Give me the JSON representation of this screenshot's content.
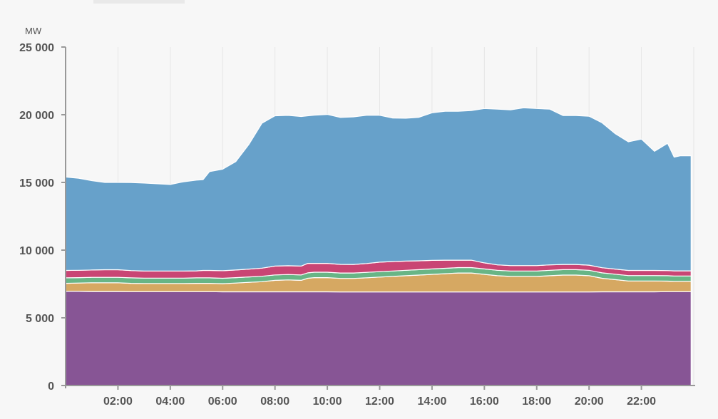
{
  "tab": {
    "label": ""
  },
  "chart_data": {
    "type": "area",
    "stacked": true,
    "ylabel": "MW",
    "ylim": [
      0,
      25000
    ],
    "xlim": [
      0,
      24
    ],
    "y_ticks": [
      0,
      5000,
      10000,
      15000,
      20000,
      25000
    ],
    "y_tick_labels": [
      "0",
      "5 000",
      "10 000",
      "15 000",
      "20 000",
      "25 000"
    ],
    "x_ticks": [
      2,
      4,
      6,
      8,
      10,
      12,
      14,
      16,
      18,
      20,
      22
    ],
    "x_tick_labels": [
      "02:00",
      "04:00",
      "06:00",
      "08:00",
      "10:00",
      "12:00",
      "14:00",
      "16:00",
      "18:00",
      "20:00",
      "22:00"
    ],
    "grid": "vertical",
    "x": [
      0,
      0.5,
      1,
      1.5,
      2,
      2.5,
      3,
      3.5,
      4,
      4.5,
      5,
      5.25,
      5.5,
      6,
      6.5,
      7,
      7.5,
      8,
      8.5,
      9,
      9.25,
      9.5,
      10,
      10.5,
      11,
      11.5,
      12,
      12.5,
      13,
      13.5,
      14,
      14.5,
      15,
      15.5,
      16,
      16.5,
      17,
      17.5,
      18,
      18.5,
      19,
      19.5,
      20,
      20.5,
      21,
      21.5,
      22,
      22.5,
      23,
      23.25,
      23.5,
      23.9
    ],
    "series": [
      {
        "color": "#875595",
        "values": [
          6950,
          6950,
          6940,
          6940,
          6940,
          6930,
          6930,
          6930,
          6930,
          6930,
          6930,
          6930,
          6930,
          6920,
          6920,
          6920,
          6920,
          6920,
          6920,
          6920,
          6920,
          6920,
          6920,
          6910,
          6910,
          6910,
          6910,
          6910,
          6910,
          6910,
          6910,
          6910,
          6910,
          6910,
          6910,
          6910,
          6910,
          6910,
          6910,
          6910,
          6910,
          6910,
          6910,
          6920,
          6920,
          6920,
          6920,
          6920,
          6930,
          6930,
          6930,
          6930
        ]
      },
      {
        "color": "#d6a862",
        "values": [
          600,
          620,
          650,
          650,
          650,
          620,
          600,
          600,
          600,
          600,
          620,
          620,
          620,
          600,
          650,
          700,
          750,
          850,
          880,
          850,
          1000,
          1050,
          1050,
          1000,
          1000,
          1050,
          1100,
          1150,
          1200,
          1250,
          1300,
          1350,
          1400,
          1400,
          1300,
          1200,
          1150,
          1150,
          1150,
          1200,
          1250,
          1250,
          1200,
          1000,
          900,
          800,
          800,
          800,
          780,
          760,
          760,
          760
        ]
      },
      {
        "color": "#68b586",
        "values": [
          400,
          400,
          400,
          400,
          400,
          400,
          400,
          400,
          400,
          400,
          400,
          400,
          400,
          400,
          400,
          400,
          400,
          400,
          400,
          400,
          400,
          400,
          400,
          400,
          400,
          400,
          400,
          400,
          400,
          400,
          400,
          400,
          400,
          400,
          400,
          400,
          400,
          400,
          400,
          400,
          400,
          400,
          400,
          400,
          400,
          400,
          400,
          400,
          400,
          400,
          400,
          400
        ]
      },
      {
        "color": "#c94574",
        "values": [
          550,
          540,
          540,
          560,
          560,
          540,
          520,
          520,
          520,
          520,
          520,
          550,
          550,
          560,
          560,
          580,
          600,
          650,
          650,
          650,
          700,
          650,
          650,
          640,
          630,
          650,
          700,
          700,
          680,
          650,
          630,
          600,
          550,
          550,
          450,
          400,
          400,
          400,
          400,
          400,
          380,
          380,
          380,
          380,
          380,
          380,
          380,
          380,
          380,
          380,
          380,
          380
        ]
      },
      {
        "color": "#67a1ca",
        "values": [
          6900,
          6800,
          6600,
          6450,
          6450,
          6500,
          6500,
          6450,
          6400,
          6600,
          6700,
          6700,
          7300,
          7500,
          8000,
          9200,
          10700,
          11100,
          11100,
          11050,
          10900,
          10950,
          11000,
          10850,
          10900,
          10950,
          10850,
          10600,
          10550,
          10600,
          10900,
          11000,
          11000,
          11050,
          11400,
          11500,
          11500,
          11650,
          11600,
          11500,
          11000,
          11000,
          11000,
          10700,
          10000,
          9500,
          9700,
          8800,
          9400,
          8400,
          8500,
          8500
        ]
      }
    ]
  }
}
